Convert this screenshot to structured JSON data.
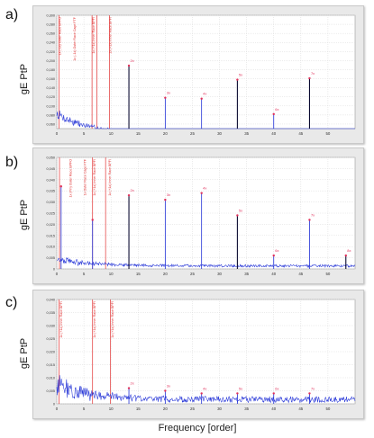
{
  "colors": {
    "spectrum": "#1f2fd6",
    "marker": "#e0305a",
    "peak": "#0a0a30",
    "annotation": "#e03030"
  },
  "xlabel": "Frequency [order]",
  "ylabel": "gE PtP",
  "chart_data": [
    {
      "type": "line",
      "panel": "a)",
      "ylabel": "gE PtP",
      "xlim": [
        0,
        55
      ],
      "ylim": [
        0.05,
        0.3
      ],
      "yticks": [
        0.3,
        0.28,
        0.26,
        0.24,
        0.22,
        0.2,
        0.18,
        0.16,
        0.14,
        0.12,
        0.1,
        0.08,
        0.06
      ],
      "ytick_labels": [
        "0,300",
        "0,280",
        "0,260",
        "0,240",
        "0,220",
        "0,200",
        "0,180",
        "0,160",
        "0,140",
        "0,120",
        "0,100",
        "0,080",
        "0,060"
      ],
      "xticks": [
        0,
        5,
        10,
        15,
        20,
        25,
        30,
        35,
        40,
        45,
        50
      ],
      "xtick_labels": [
        "0",
        "5",
        "10",
        "15",
        "20",
        "25",
        "30",
        "35",
        "40",
        "45",
        "50"
      ],
      "noise_level": 0.07,
      "noise_peak": 0.095,
      "noise_decay": 0.003,
      "ref_lines": [
        0.4,
        6.5,
        7.4,
        9.7
      ],
      "annotations": [
        {
          "x": 0.4,
          "text": "1x (-1x) Outer Race BPFO"
        },
        {
          "x": 3.1,
          "text": "1x (-1x) Outer Race Cage FTF"
        },
        {
          "x": 6.6,
          "text": "1x (+1x) Inner Race BPFI"
        },
        {
          "x": 9.7,
          "text": "1x (+1x) Inner Race BPFI"
        }
      ],
      "peaks": [
        {
          "x": 13.3,
          "y": 0.189,
          "label": "2x",
          "strong": true
        },
        {
          "x": 20.0,
          "y": 0.118,
          "label": "3x",
          "strong": false
        },
        {
          "x": 26.7,
          "y": 0.116,
          "label": "4x",
          "strong": false
        },
        {
          "x": 33.3,
          "y": 0.158,
          "label": "5x",
          "strong": true
        },
        {
          "x": 40.0,
          "y": 0.082,
          "label": "6x",
          "strong": false
        },
        {
          "x": 46.6,
          "y": 0.161,
          "label": "7x",
          "strong": true
        }
      ]
    },
    {
      "type": "line",
      "panel": "b)",
      "ylabel": "gE PtP",
      "xlim": [
        0,
        55
      ],
      "ylim": [
        0,
        0.05
      ],
      "yticks": [
        0.05,
        0.045,
        0.04,
        0.035,
        0.03,
        0.025,
        0.02,
        0.015,
        0.01,
        0.005,
        0
      ],
      "ytick_labels": [
        "0,050",
        "0,045",
        "0,040",
        "0,035",
        "0,030",
        "0,025",
        "0,020",
        "0,015",
        "0,010",
        "0,005",
        "0"
      ],
      "xticks": [
        0,
        5,
        10,
        15,
        20,
        25,
        30,
        35,
        40,
        45,
        50
      ],
      "xtick_labels": [
        "0",
        "5",
        "10",
        "15",
        "20",
        "25",
        "30",
        "35",
        "40",
        "45",
        "50"
      ],
      "noise_level": 0.0025,
      "noise_peak": 0.006,
      "noise_decay": 0.0006,
      "ref_lines": [
        0.5,
        6.6,
        9.0
      ],
      "annotations": [
        {
          "x": 2.4,
          "text": "1x (Pin) Outer Race BPFO"
        },
        {
          "x": 5.0,
          "text": "1x Outer Race Cage FTF"
        },
        {
          "x": 6.8,
          "text": "1x (+1x) Inner Race BPFI"
        },
        {
          "x": 9.6,
          "text": "1x (+1x) Inner Race BPFI"
        }
      ],
      "peaks": [
        {
          "x": 0.8,
          "y": 0.037,
          "label": "",
          "strong": false
        },
        {
          "x": 6.6,
          "y": 0.022,
          "label": "",
          "strong": false
        },
        {
          "x": 13.3,
          "y": 0.033,
          "label": "2x",
          "strong": true
        },
        {
          "x": 20.0,
          "y": 0.031,
          "label": "3x",
          "strong": false
        },
        {
          "x": 26.7,
          "y": 0.034,
          "label": "4x",
          "strong": false
        },
        {
          "x": 33.3,
          "y": 0.024,
          "label": "5x",
          "strong": true
        },
        {
          "x": 40.0,
          "y": 0.006,
          "label": "6x",
          "strong": false
        },
        {
          "x": 46.6,
          "y": 0.022,
          "label": "7x",
          "strong": false
        },
        {
          "x": 53.3,
          "y": 0.006,
          "label": "8x",
          "strong": true
        }
      ]
    },
    {
      "type": "line",
      "panel": "c)",
      "ylabel": "gE PtP",
      "xlim": [
        0,
        55
      ],
      "ylim": [
        0,
        0.04
      ],
      "yticks": [
        0.04,
        0.035,
        0.03,
        0.025,
        0.02,
        0.015,
        0.01,
        0.005,
        0
      ],
      "ytick_labels": [
        "0,040",
        "0,035",
        "0,030",
        "0,025",
        "0,020",
        "0,015",
        "0,010",
        "0,005",
        "0"
      ],
      "xticks": [
        0,
        5,
        10,
        15,
        20,
        25,
        30,
        35,
        40,
        45,
        50
      ],
      "xtick_labels": [
        "0",
        "5",
        "10",
        "15",
        "20",
        "25",
        "30",
        "35",
        "40",
        "45",
        "50"
      ],
      "noise_level": 0.003,
      "noise_peak": 0.012,
      "noise_decay": 0.0012,
      "ref_lines": [
        0.4,
        6.6,
        9.9
      ],
      "annotations": [
        {
          "x": 0.6,
          "text": "1x (+1x) Inner Race BPFI"
        },
        {
          "x": 6.8,
          "text": "1x (+1x) Inner Race BPFI"
        },
        {
          "x": 10.1,
          "text": "1x (+1x) Inner Race BPFI"
        }
      ],
      "peaks": [
        {
          "x": 13.3,
          "y": 0.006,
          "label": "2x",
          "strong": false
        },
        {
          "x": 20.0,
          "y": 0.005,
          "label": "3x",
          "strong": false
        },
        {
          "x": 26.7,
          "y": 0.004,
          "label": "4x",
          "strong": false
        },
        {
          "x": 33.3,
          "y": 0.004,
          "label": "5x",
          "strong": false
        },
        {
          "x": 40.0,
          "y": 0.004,
          "label": "6x",
          "strong": false
        },
        {
          "x": 46.6,
          "y": 0.004,
          "label": "7x",
          "strong": false
        }
      ]
    }
  ]
}
